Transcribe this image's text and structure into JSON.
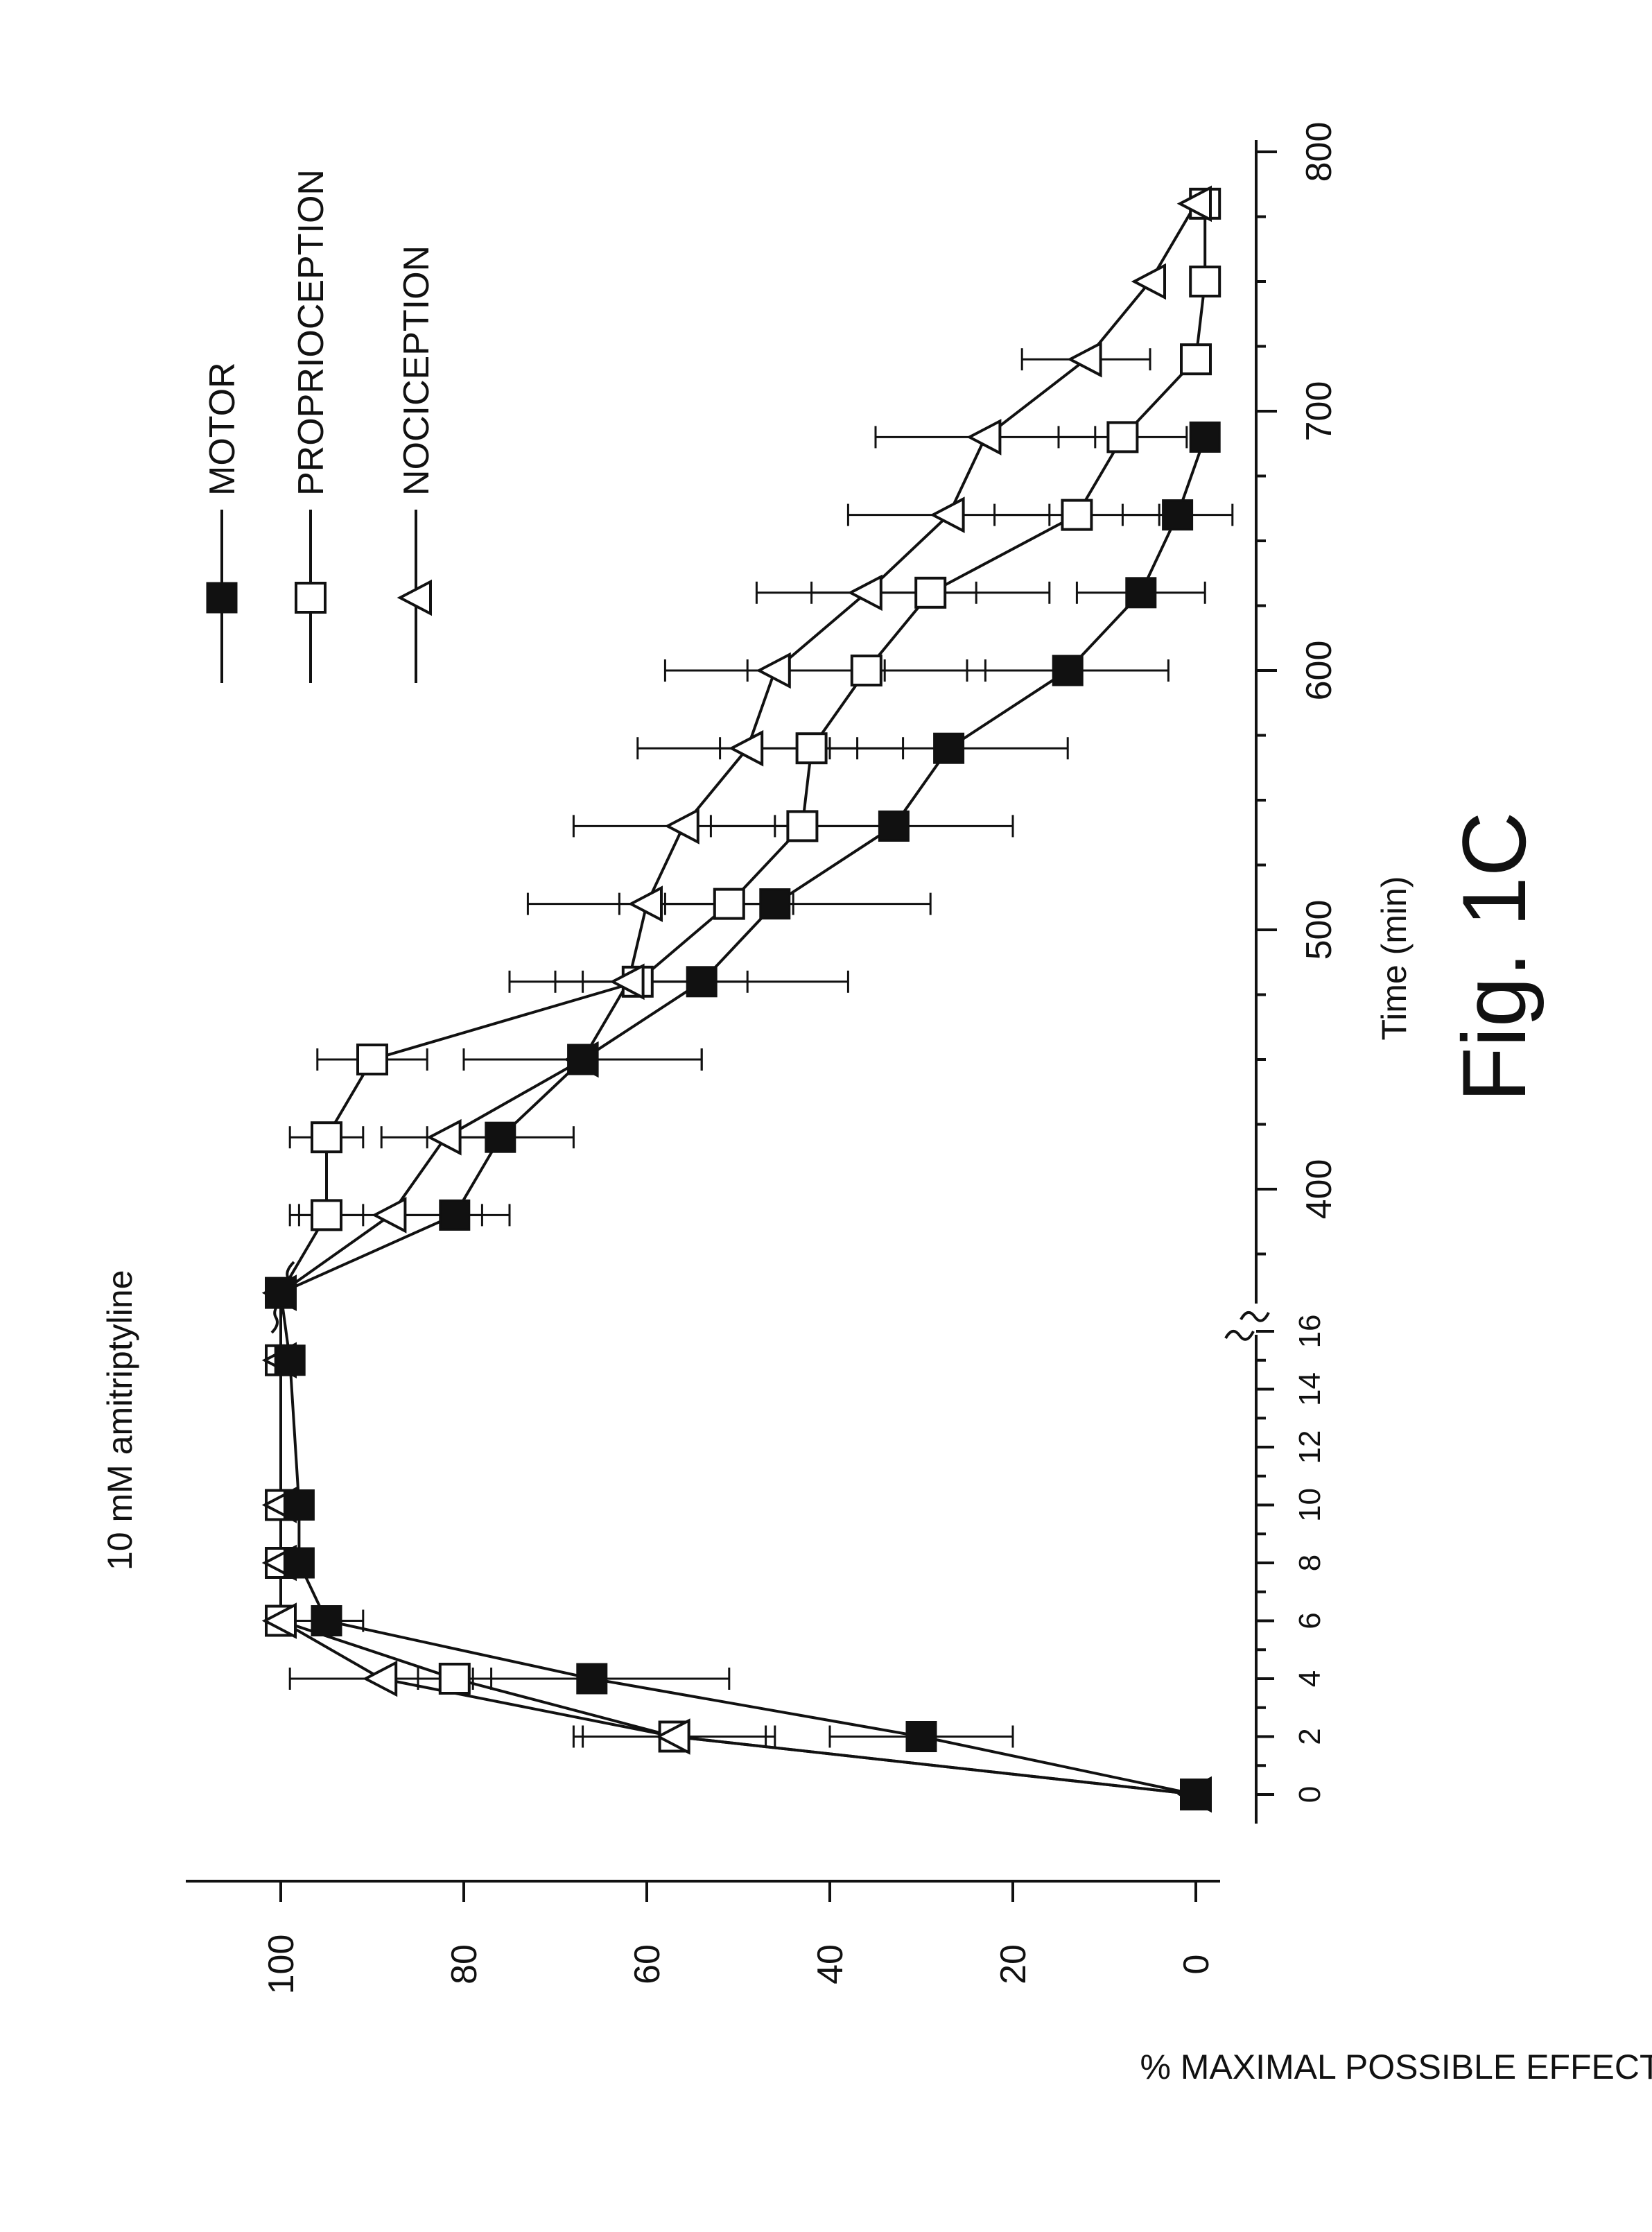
{
  "figure_label": "Fig. 1C",
  "chart_data": {
    "type": "line",
    "title": "10 mM amitriptyline",
    "xlabel": "Time (min)",
    "ylabel": "% MAXIMAL POSSIBLE EFFECT",
    "orientation": "rotated 90 degrees counter-clockwise",
    "ylim": [
      0,
      100
    ],
    "yticks": [
      0,
      20,
      40,
      60,
      80,
      100
    ],
    "x_axis_break": "between 16 and 360",
    "x_segments": [
      {
        "range": [
          0,
          16
        ],
        "ticks": [
          0,
          2,
          4,
          6,
          8,
          10,
          12,
          14,
          16
        ]
      },
      {
        "range": [
          360,
          800
        ],
        "ticks": [
          400,
          500,
          600,
          700,
          800
        ]
      }
    ],
    "xtick_labels": [
      "0",
      "2",
      "4",
      "6",
      "8",
      "10",
      "12",
      "14",
      "16",
      "400",
      "500",
      "600",
      "700",
      "800"
    ],
    "ytick_labels": [
      "0",
      "20",
      "40",
      "60",
      "80",
      "100"
    ],
    "legend": {
      "position": "top-right",
      "entries": [
        {
          "name": "MOTOR",
          "marker": "filled-square"
        },
        {
          "name": "PROPRIOCEPTION",
          "marker": "open-square"
        },
        {
          "name": "NOCICEPTION",
          "marker": "open-triangle"
        }
      ]
    },
    "series": [
      {
        "name": "MOTOR",
        "marker": "filled-square",
        "x": [
          0,
          2,
          4,
          6,
          8,
          10,
          15,
          360,
          390,
          420,
          450,
          480,
          510,
          540,
          570,
          600,
          630,
          660,
          690
        ],
        "y": [
          0,
          30,
          66,
          95,
          98,
          98,
          99,
          100,
          81,
          76,
          67,
          54,
          46,
          33,
          27,
          14,
          6,
          2,
          -1
        ],
        "err": [
          0,
          10,
          15,
          4,
          0,
          0,
          0,
          0,
          6,
          8,
          13,
          16,
          17,
          13,
          13,
          11,
          7,
          6,
          0
        ]
      },
      {
        "name": "PROPRIOCEPTION",
        "marker": "open-square",
        "x": [
          0,
          2,
          4,
          6,
          8,
          10,
          15,
          360,
          390,
          420,
          450,
          480,
          510,
          540,
          570,
          600,
          630,
          660,
          690,
          720,
          750,
          780
        ],
        "y": [
          0,
          57,
          81,
          100,
          100,
          100,
          100,
          100,
          95,
          95,
          90,
          61,
          51,
          43,
          42,
          36,
          29,
          13,
          8,
          0,
          -1,
          -1
        ],
        "err": [
          0,
          11,
          4,
          0,
          0,
          0,
          0,
          0,
          4,
          4,
          6,
          6,
          7,
          10,
          10,
          13,
          13,
          9,
          7,
          0,
          0,
          0
        ]
      },
      {
        "name": "NOCICEPTION",
        "marker": "open-triangle",
        "x": [
          0,
          2,
          4,
          6,
          8,
          10,
          15,
          360,
          390,
          420,
          450,
          480,
          510,
          540,
          570,
          600,
          630,
          660,
          690,
          720,
          750,
          780
        ],
        "y": [
          0,
          57,
          89,
          100,
          100,
          100,
          100,
          100,
          88,
          82,
          67,
          62,
          60,
          56,
          49,
          46,
          36,
          27,
          23,
          12,
          5,
          0
        ],
        "err": [
          0,
          10,
          10,
          0,
          0,
          0,
          0,
          0,
          10,
          7,
          13,
          13,
          13,
          12,
          12,
          12,
          12,
          11,
          12,
          7,
          0,
          0
        ]
      }
    ]
  }
}
